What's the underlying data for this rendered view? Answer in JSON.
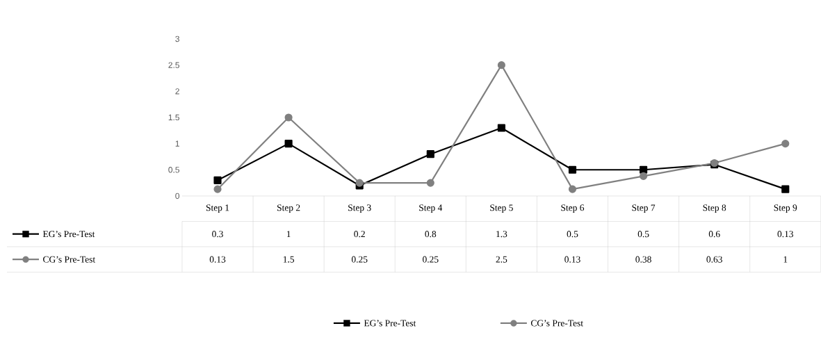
{
  "chart_data": {
    "type": "line",
    "categories": [
      "Step 1",
      "Step 2",
      "Step 3",
      "Step 4",
      "Step 5",
      "Step 6",
      "Step 7",
      "Step 8",
      "Step 9"
    ],
    "series": [
      {
        "name": "EG’s Pre-Test",
        "color": "#000000",
        "marker": "square",
        "values": [
          0.3,
          1,
          0.2,
          0.8,
          1.3,
          0.5,
          0.5,
          0.6,
          0.13
        ]
      },
      {
        "name": "CG’s Pre-Test",
        "color": "#808080",
        "marker": "circle",
        "values": [
          0.13,
          1.5,
          0.25,
          0.25,
          2.5,
          0.13,
          0.38,
          0.63,
          1
        ]
      }
    ],
    "ylim": [
      0,
      3
    ],
    "yticks": [
      0,
      0.5,
      1,
      1.5,
      2,
      2.5,
      3
    ],
    "data_labels": true,
    "legend": "bottom",
    "grid": false
  }
}
